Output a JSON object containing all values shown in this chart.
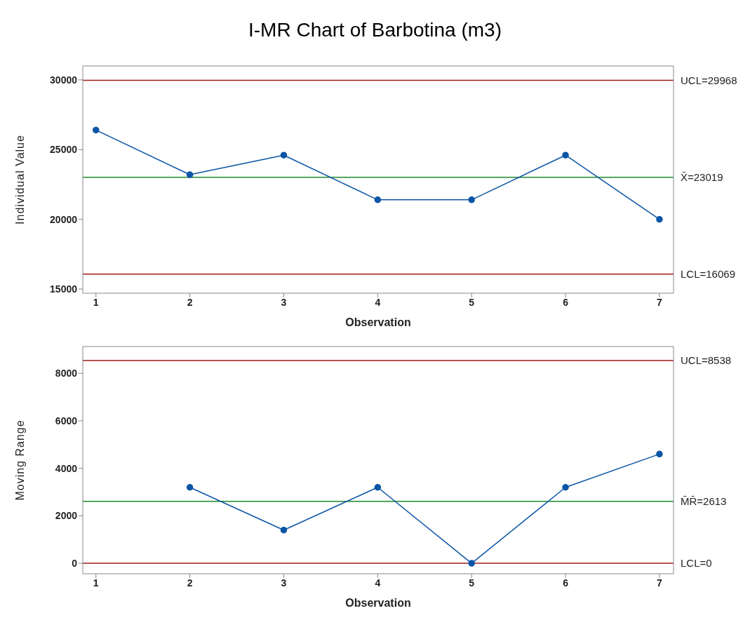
{
  "chart_data": [
    {
      "type": "line",
      "title": "I-MR Chart of Barbotina (m3)",
      "xlabel": "Observation",
      "ylabel": "Individual Value",
      "x": [
        1,
        2,
        3,
        4,
        5,
        6,
        7
      ],
      "values": [
        26400,
        23200,
        24600,
        21400,
        21400,
        24600,
        20000
      ],
      "color": "#0b55a6",
      "marker": "circle",
      "xlim": [
        0.86,
        7.15
      ],
      "xticks": [
        1,
        2,
        3,
        4,
        5,
        6,
        7
      ],
      "ylim": [
        14700,
        31000
      ],
      "yticks": [
        15000,
        20000,
        25000,
        30000
      ],
      "ref_lines": [
        {
          "axis": "y",
          "value": 29968,
          "label": "UCL=29968",
          "color": "#9e1b1b"
        },
        {
          "axis": "y",
          "value": 23019,
          "label": "X̄=23019",
          "color": "#1d8a2a"
        },
        {
          "axis": "y",
          "value": 16069,
          "label": "LCL=16069",
          "color": "#9e1b1b"
        }
      ]
    },
    {
      "type": "line",
      "xlabel": "Observation",
      "ylabel": "Moving Range",
      "x": [
        2,
        3,
        4,
        5,
        6,
        7
      ],
      "values": [
        3200,
        1400,
        3200,
        0,
        3200,
        4600
      ],
      "color": "#0b55a6",
      "marker": "circle",
      "xlim": [
        0.86,
        7.15
      ],
      "xticks": [
        1,
        2,
        3,
        4,
        5,
        6,
        7
      ],
      "ylim": [
        -440,
        9130
      ],
      "yticks": [
        0,
        2000,
        4000,
        6000,
        8000
      ],
      "ref_lines": [
        {
          "axis": "y",
          "value": 8538,
          "label": "UCL=8538",
          "color": "#9e1b1b"
        },
        {
          "axis": "y",
          "value": 2613,
          "label": "M̄R̄=2613",
          "color": "#1d8a2a"
        },
        {
          "axis": "y",
          "value": 0,
          "label": "LCL=0",
          "color": "#9e1b1b"
        }
      ]
    }
  ]
}
